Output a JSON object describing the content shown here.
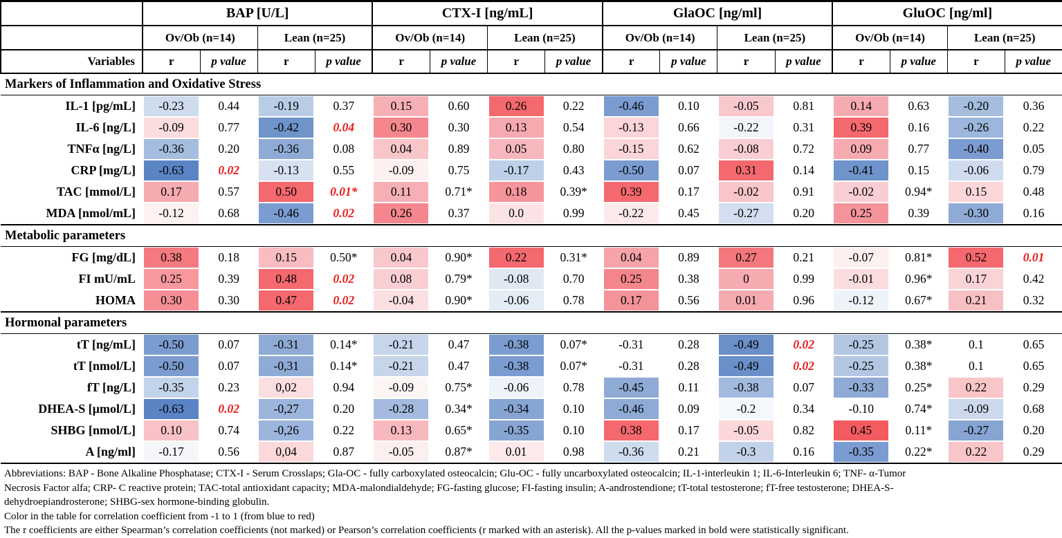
{
  "palette": {
    "significant_p_color": "#e81c1c",
    "scale_negative_max": "#5b84c5",
    "scale_positive_max": "#f4696e",
    "border": "#000000"
  },
  "table": {
    "variables_label": "Variables",
    "groups": [
      {
        "label": "BAP [U/L]"
      },
      {
        "label": "CTX-I [ng/mL]"
      },
      {
        "label": "GlaOC [ng/ml]"
      },
      {
        "label": "GluOC [ng/ml]"
      }
    ],
    "subgroup_labels": [
      "Ov/Ob (n=14)",
      "Lean (n=25)"
    ],
    "stat_labels": [
      "r",
      "p value"
    ],
    "sections": [
      {
        "title": "Markers of Inflammation and Oxidative Stress",
        "rows": [
          {
            "label": "IL-1 [pg/mL]",
            "cells": [
              {
                "r": "-0.23",
                "p": "0.44",
                "bg": "#cfdcee"
              },
              {
                "r": "-0.19",
                "p": "0.37",
                "bg": "#b9cce6"
              },
              {
                "r": "0.15",
                "p": "0.60",
                "bg": "#f6b0b5"
              },
              {
                "r": "0.26",
                "p": "0.22",
                "bg": "#f4696e"
              },
              {
                "r": "-0.46",
                "p": "0.10",
                "bg": "#7b9cd0"
              },
              {
                "r": "-0.05",
                "p": "0.81",
                "bg": "#f8c8cc"
              },
              {
                "r": "0.14",
                "p": "0.63",
                "bg": "#f6abb0"
              },
              {
                "r": "-0.20",
                "p": "0.36",
                "bg": "#a5bdde"
              }
            ]
          },
          {
            "label": "IL-6 [ng/L]",
            "cells": [
              {
                "r": "-0.09",
                "p": "0.77",
                "bg": "#fbdcdf"
              },
              {
                "r": "-0.42",
                "p": "0.04",
                "bg": "#6f93cb",
                "sig": true
              },
              {
                "r": "0.30",
                "p": "0.30",
                "bg": "#f4878d"
              },
              {
                "r": "0.13",
                "p": "0.54",
                "bg": "#f6a9ae"
              },
              {
                "r": "-0.13",
                "p": "0.66",
                "bg": "#fbd5d8"
              },
              {
                "r": "-0.22",
                "p": "0.31",
                "bg": "#f2f5fa"
              },
              {
                "r": "0.39",
                "p": "0.16",
                "bg": "#f4696e"
              },
              {
                "r": "-0.26",
                "p": "0.22",
                "bg": "#9db6db"
              }
            ]
          },
          {
            "label": "TNFα [ng/L]",
            "cells": [
              {
                "r": "-0.36",
                "p": "0.20",
                "bg": "#a5bdde"
              },
              {
                "r": "-0.36",
                "p": "0.08",
                "bg": "#8fabd5"
              },
              {
                "r": "0.04",
                "p": "0.89",
                "bg": "#f8c5c9"
              },
              {
                "r": "0.05",
                "p": "0.80",
                "bg": "#f7b8bd"
              },
              {
                "r": "-0.15",
                "p": "0.62",
                "bg": "#fbd5d8"
              },
              {
                "r": "-0.08",
                "p": "0.72",
                "bg": "#f9ced2"
              },
              {
                "r": "0.09",
                "p": "0.77",
                "bg": "#f6abb0"
              },
              {
                "r": "-0.40",
                "p": "0.05",
                "bg": "#7b9cd0"
              }
            ]
          },
          {
            "label": "CRP [mg/L]",
            "cells": [
              {
                "r": "-0.63",
                "p": "0.02",
                "bg": "#5b84c5",
                "sig": true
              },
              {
                "r": "-0.13",
                "p": "0.55",
                "bg": "#d7e1f0"
              },
              {
                "r": "-0.09",
                "p": "0.75",
                "bg": "#fdf0f1"
              },
              {
                "r": "-0.17",
                "p": "0.43",
                "bg": "#bdd0e8"
              },
              {
                "r": "-0.50",
                "p": "0.07",
                "bg": "#7b9cd0"
              },
              {
                "r": "0.31",
                "p": "0.14",
                "bg": "#f4696e"
              },
              {
                "r": "-0.41",
                "p": "0.15",
                "bg": "#6f93cb"
              },
              {
                "r": "-0.06",
                "p": "0.79",
                "bg": "#cfdcee"
              }
            ]
          },
          {
            "label": "TAC [mmol/L]",
            "cells": [
              {
                "r": "0.17",
                "p": "0.57",
                "bg": "#f6abb0"
              },
              {
                "r": "0.50",
                "p": "0.01*",
                "bg": "#f4696e",
                "sig": true
              },
              {
                "r": "0.11",
                "p": "0.71*",
                "bg": "#f6b0b5"
              },
              {
                "r": "0.18",
                "p": "0.39*",
                "bg": "#f5959b"
              },
              {
                "r": "0.39",
                "p": "0.17",
                "bg": "#f4696e"
              },
              {
                "r": "-0.02",
                "p": "0.91",
                "bg": "#f8c5c9"
              },
              {
                "r": "-0.02",
                "p": "0.94*",
                "bg": "#f9ced2"
              },
              {
                "r": "0.15",
                "p": "0.48",
                "bg": "#fbd7da"
              }
            ]
          },
          {
            "label": "MDA [nmol/mL]",
            "cells": [
              {
                "r": "-0.12",
                "p": "0.68",
                "bg": "#fdf1f2"
              },
              {
                "r": "-0.46",
                "p": "0.02",
                "bg": "#7b9cd0",
                "sig": true
              },
              {
                "r": "0.26",
                "p": "0.37",
                "bg": "#f4878d"
              },
              {
                "r": "0.0",
                "p": "0.99",
                "bg": "#fbe3e5"
              },
              {
                "r": "-0.22",
                "p": "0.45",
                "bg": "#fce9ea"
              },
              {
                "r": "-0.27",
                "p": "0.20",
                "bg": "#d3def0"
              },
              {
                "r": "0.25",
                "p": "0.39",
                "bg": "#f5939a"
              },
              {
                "r": "-0.30",
                "p": "0.16",
                "bg": "#8fabd5"
              }
            ]
          }
        ]
      },
      {
        "title": "Metabolic parameters",
        "rows": [
          {
            "label": "FG [mg/dL]",
            "cells": [
              {
                "r": "0.38",
                "p": "0.18",
                "bg": "#f47a80"
              },
              {
                "r": "0.15",
                "p": "0.50*",
                "bg": "#f8bcc1"
              },
              {
                "r": "0.04",
                "p": "0.90*",
                "bg": "#f9c8cc"
              },
              {
                "r": "0.22",
                "p": "0.31*",
                "bg": "#f4696e"
              },
              {
                "r": "0.04",
                "p": "0.89",
                "bg": "#f6a3a9"
              },
              {
                "r": "0.27",
                "p": "0.21",
                "bg": "#f4777d"
              },
              {
                "r": "-0.07",
                "p": "0.81*",
                "bg": "#fdf0f1"
              },
              {
                "r": "0.52",
                "p": "0.01",
                "bg": "#f4696e",
                "sig": true
              }
            ]
          },
          {
            "label": "FI mU/mL",
            "cells": [
              {
                "r": "0.25",
                "p": "0.39",
                "bg": "#f7989e"
              },
              {
                "r": "0.48",
                "p": "0.02",
                "bg": "#f4696e",
                "sig": true
              },
              {
                "r": "0.08",
                "p": "0.79*",
                "bg": "#f9ced2"
              },
              {
                "r": "-0.08",
                "p": "0.70",
                "bg": "#dfe8f3"
              },
              {
                "r": "0.25",
                "p": "0.38",
                "bg": "#f4858b"
              },
              {
                "r": "0",
                "p": "0.99",
                "bg": "#f6abb0"
              },
              {
                "r": "-0.01",
                "p": "0.96*",
                "bg": "#fbdcdf"
              },
              {
                "r": "0.17",
                "p": "0.42",
                "bg": "#fad3d6"
              }
            ]
          },
          {
            "label": "HOMA",
            "cells": [
              {
                "r": "0.30",
                "p": "0.30",
                "bg": "#f68f95"
              },
              {
                "r": "0.47",
                "p": "0.02",
                "bg": "#f4696e",
                "sig": true
              },
              {
                "r": "-0.04",
                "p": "0.90*",
                "bg": "#fbe0e2"
              },
              {
                "r": "-0.06",
                "p": "0.78",
                "bg": "#e4ecf6"
              },
              {
                "r": "0.17",
                "p": "0.56",
                "bg": "#f5939a"
              },
              {
                "r": "0.01",
                "p": "0.96",
                "bg": "#f6abb0"
              },
              {
                "r": "-0.12",
                "p": "0.67*",
                "bg": "#eef2f9"
              },
              {
                "r": "0.21",
                "p": "0.32",
                "bg": "#f8c0c5"
              }
            ]
          }
        ]
      },
      {
        "title": "Hormonal parameters",
        "rows": [
          {
            "label": "tT [ng/mL]",
            "cells": [
              {
                "r": "-0.50",
                "p": "0.07",
                "bg": "#7b9cd0"
              },
              {
                "r": "-0.31",
                "p": "0.14*",
                "bg": "#8fabd5"
              },
              {
                "r": "-0.21",
                "p": "0.47",
                "bg": "#c6d5ea"
              },
              {
                "r": "-0.38",
                "p": "0.07*",
                "bg": "#7b9cd0"
              },
              {
                "r": "-0.31",
                "p": "0.28"
              },
              {
                "r": "-0.49",
                "p": "0.02",
                "bg": "#6a8fc9",
                "sig": true
              },
              {
                "r": "-0.25",
                "p": "0.38*",
                "bg": "#b3c7e3"
              },
              {
                "r": "0.1",
                "p": "0.65"
              }
            ]
          },
          {
            "label": "tT [nmol/L]",
            "cells": [
              {
                "r": "-0.50",
                "p": "0.07",
                "bg": "#7b9cd0"
              },
              {
                "r": "-0,31",
                "p": "0.14*",
                "bg": "#8fabd5"
              },
              {
                "r": "-0.21",
                "p": "0.47",
                "bg": "#c6d5ea"
              },
              {
                "r": "-0.38",
                "p": "0.07*",
                "bg": "#7b9cd0"
              },
              {
                "r": "-0.31",
                "p": "0.28"
              },
              {
                "r": "-0.49",
                "p": "0.02",
                "bg": "#6a8fc9",
                "sig": true
              },
              {
                "r": "-0.25",
                "p": "0.38*",
                "bg": "#b3c7e3"
              },
              {
                "r": "0.1",
                "p": "0.65"
              }
            ]
          },
          {
            "label": "fT [ng/L]",
            "cells": [
              {
                "r": "-0.35",
                "p": "0.23",
                "bg": "#c3d3e9"
              },
              {
                "r": "0,02",
                "p": "0.94",
                "bg": "#fbdee0"
              },
              {
                "r": "-0.09",
                "p": "0.75*",
                "bg": "#fdf4f4"
              },
              {
                "r": "-0.06",
                "p": "0.78",
                "bg": "#eef2f9"
              },
              {
                "r": "-0.45",
                "p": "0.11",
                "bg": "#8fabd5"
              },
              {
                "r": "-0.38",
                "p": "0.07",
                "bg": "#a3badf"
              },
              {
                "r": "-0.33",
                "p": "0.25*",
                "bg": "#8fabd5"
              },
              {
                "r": "0.22",
                "p": "0.29",
                "bg": "#f8c5c9"
              }
            ]
          },
          {
            "label": "DHEA-S [μmol/L]",
            "cells": [
              {
                "r": "-0.63",
                "p": "0.02",
                "bg": "#5b84c5",
                "sig": true
              },
              {
                "r": "-0,27",
                "p": "0.20",
                "bg": "#9cb5dc"
              },
              {
                "r": "-0.28",
                "p": "0.34*",
                "bg": "#a4bbdf"
              },
              {
                "r": "-0.34",
                "p": "0.10",
                "bg": "#87a5d3"
              },
              {
                "r": "-0.46",
                "p": "0.09",
                "bg": "#8fabd5"
              },
              {
                "r": "-0.2",
                "p": "0.34",
                "bg": "#f4f7fb"
              },
              {
                "r": "-0.10",
                "p": "0.74*"
              },
              {
                "r": "-0.09",
                "p": "0.68",
                "bg": "#ccd9ec"
              }
            ]
          },
          {
            "label": "SHBG [nmol/L]",
            "cells": [
              {
                "r": "0.10",
                "p": "0.74",
                "bg": "#f8c2c6"
              },
              {
                "r": "-0,26",
                "p": "0.22",
                "bg": "#9cb5dc"
              },
              {
                "r": "0.13",
                "p": "0.65*",
                "bg": "#f8b9be"
              },
              {
                "r": "-0.35",
                "p": "0.10",
                "bg": "#87a5d3"
              },
              {
                "r": "0.38",
                "p": "0.17",
                "bg": "#f5686e"
              },
              {
                "r": "-0.05",
                "p": "0.82",
                "bg": "#fbd7da"
              },
              {
                "r": "0.45",
                "p": "0.11*",
                "bg": "#f45b61"
              },
              {
                "r": "-0.27",
                "p": "0.20",
                "bg": "#87a5d3"
              }
            ]
          },
          {
            "label": "A [ng/ml]",
            "cells": [
              {
                "r": "-0.17",
                "p": "0.56",
                "bg": "#f4f6fa"
              },
              {
                "r": "0,04",
                "p": "0.87",
                "bg": "#fbd9db"
              },
              {
                "r": "-0.05",
                "p": "0.87*",
                "bg": "#fceff0"
              },
              {
                "r": "0.01",
                "p": "0.98",
                "bg": "#fce9ea"
              },
              {
                "r": "-0.36",
                "p": "0.21",
                "bg": "#cfdcee"
              },
              {
                "r": "-0.3",
                "p": "0.16",
                "bg": "#c2d2e9"
              },
              {
                "r": "-0.35",
                "p": "0.22*",
                "bg": "#7b9cd0"
              },
              {
                "r": "0.22",
                "p": "0.29",
                "bg": "#f8c5c9"
              }
            ]
          }
        ]
      }
    ]
  },
  "footnotes": [
    "Abbreviations: BAP - Bone Alkaline Phosphatase; CTX-I - Serum Crosslaps; Gla-OC - fully carboxylated osteocalcin; Glu-OC - fully uncarboxylated osteocalcin; IL-1-interleukin 1; IL-6-Interleukin 6; TNF- α-Tumor",
    "Necrosis Factor alfa; CRP- C reactive protein; TAC-total antioxidant capacity; MDA-malondialdehyde; FG-fasting glucose; FI-fasting insulin; A-androstendione; tT-total testosterone; fT-free testosterone; DHEA-S-",
    "dehydroepiandrosterone; SHBG-sex hormone-binding globulin.",
    "Color in the table for correlation coefficient from -1 to 1 (from blue to red)",
    "The r coefficients are either Spearman’s correlation coefficients (not marked) or Pearson’s correlation coefficients (r marked with an asterisk). All the p-values marked in bold were statistically significant."
  ]
}
